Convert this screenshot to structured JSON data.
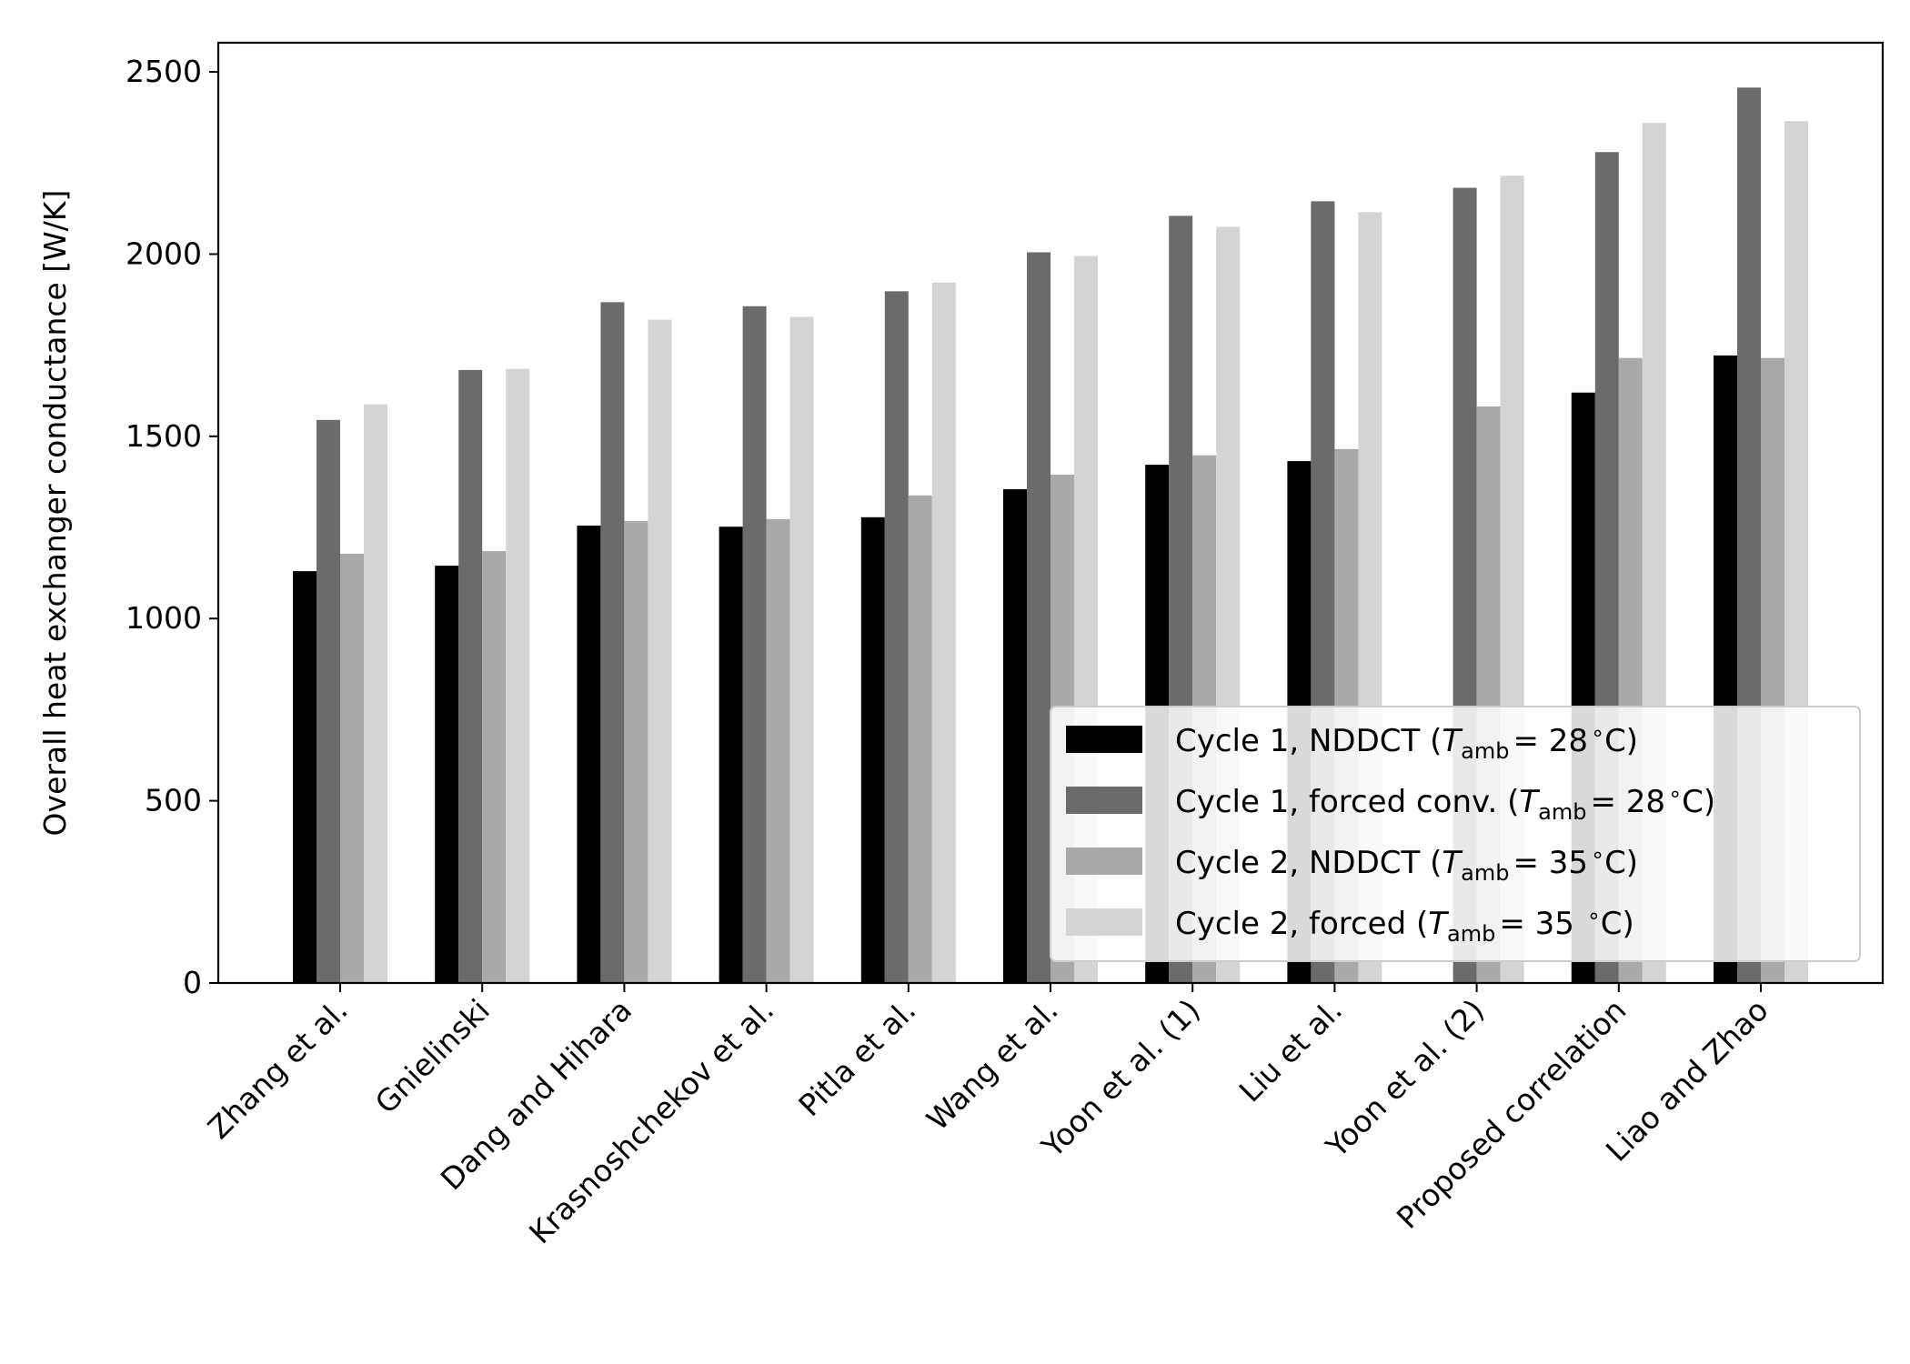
{
  "chart_data": {
    "type": "bar",
    "title": "",
    "xlabel": "",
    "ylabel": "Overall heat exchanger conductance [W/K]",
    "ylim": [
      0,
      2580
    ],
    "yticks": [
      0,
      500,
      1000,
      1500,
      2000,
      2500
    ],
    "grid": false,
    "legend_position": "lower-right",
    "categories": [
      "Zhang et al.",
      "Gnielinski",
      "Dang and Hihara",
      "Krasnoshchekov et al.",
      "Pitla et al.",
      "Wang et al.",
      "Yoon et al. (1)",
      "Liu et al.",
      "Yoon et al. (2)",
      "Proposed correlation",
      "Liao and Zhao"
    ],
    "series": [
      {
        "name": "Cycle 1, NDDCT (T_amb = 28 °C)",
        "legend_pre": "Cycle 1, NDDCT (",
        "legend_value": "= 28",
        "legend_post": "C)",
        "color": "#000000",
        "values": [
          1130,
          1145,
          1255,
          1252,
          1278,
          1355,
          1422,
          1432,
          null,
          1620,
          1722
        ]
      },
      {
        "name": "Cycle 1, forced conv. (T_amb = 28 °C)",
        "legend_pre": "Cycle 1, forced conv. (",
        "legend_value": "= 28",
        "legend_post": "C)",
        "color": "#6b6b6b",
        "values": [
          1545,
          1682,
          1868,
          1857,
          1898,
          2005,
          2105,
          2145,
          2182,
          2280,
          2457
        ]
      },
      {
        "name": "Cycle 2, NDDCT (T_amb = 35 °C)",
        "legend_pre": "Cycle 2, NDDCT (",
        "legend_value": "= 35",
        "legend_post": "C)",
        "color": "#a9a9a9",
        "values": [
          1178,
          1185,
          1268,
          1273,
          1338,
          1395,
          1448,
          1465,
          1582,
          1715,
          1715
        ]
      },
      {
        "name": "Cycle 2, forced (T_amb = 35 °C)",
        "legend_pre": "Cycle 2, forced (",
        "legend_value": "= 35 ",
        "legend_post": "C)",
        "color": "#d4d4d4",
        "values": [
          1588,
          1685,
          1820,
          1828,
          1922,
          1995,
          2075,
          2115,
          2215,
          2360,
          2365
        ]
      }
    ],
    "legend_symbol": {
      "T": "T",
      "sub": "amb",
      "deg": "∘"
    }
  }
}
